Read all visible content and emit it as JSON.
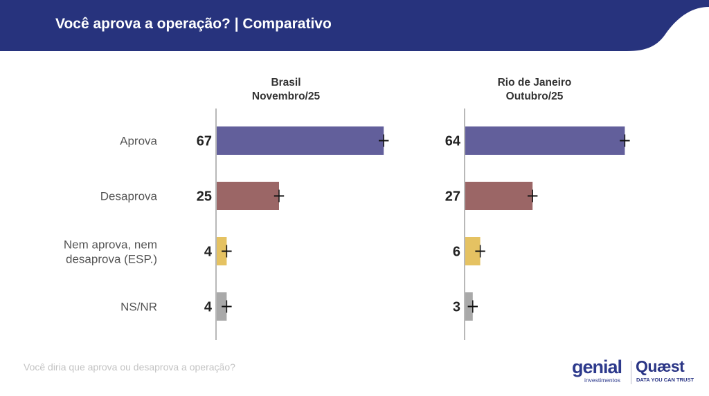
{
  "header": {
    "title": "Você aprova a operação? | Comparativo",
    "color": "#27337d"
  },
  "footer": {
    "question": "Você diria que aprova ou desaprova a operação?"
  },
  "logos": {
    "genial_name": "genial",
    "genial_sub": "investimentos",
    "quaest_name": "Quæst",
    "quaest_tagline": "DATA YOU CAN TRUST"
  },
  "chart_data": {
    "type": "bar",
    "orientation": "horizontal",
    "categories": [
      "Aprova",
      "Desaprova",
      "Nem aprova, nem desaprova (ESP.)",
      "NS/NR"
    ],
    "category_lines": [
      [
        "Aprova"
      ],
      [
        "Desaprova"
      ],
      [
        "Nem aprova, nem",
        "desaprova (ESP.)"
      ],
      [
        "NS/NR"
      ]
    ],
    "bar_colors": [
      "#625f9b",
      "#9b6666",
      "#e5c262",
      "#a9a9a9"
    ],
    "error_margin": 2,
    "panels": [
      {
        "title_lines": [
          "Brasil",
          "Novembro/25"
        ],
        "values": [
          67,
          25,
          4,
          4
        ]
      },
      {
        "title_lines": [
          "Rio de Janeiro",
          "Outubro/25"
        ],
        "values": [
          64,
          27,
          6,
          3
        ]
      }
    ]
  }
}
